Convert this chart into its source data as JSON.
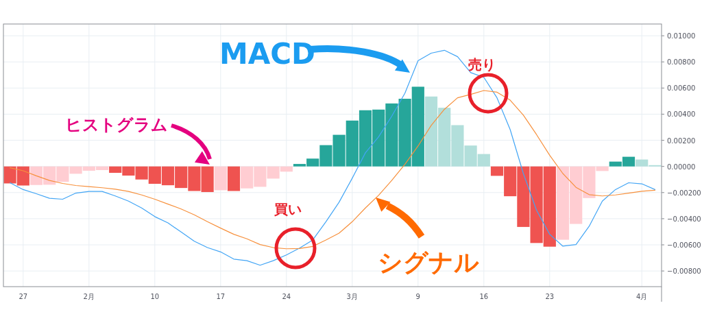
{
  "chart_data": {
    "type": "bar",
    "categories": [
      null,
      "27",
      null,
      null,
      null,
      null,
      "2月",
      null,
      null,
      null,
      null,
      "10",
      null,
      null,
      null,
      null,
      "17",
      null,
      null,
      null,
      null,
      "24",
      null,
      null,
      null,
      null,
      "3月",
      null,
      null,
      null,
      null,
      "9",
      null,
      null,
      null,
      null,
      "16",
      null,
      null,
      null,
      null,
      "23",
      null,
      null,
      null,
      null,
      null,
      null,
      "4月",
      null
    ],
    "series": [
      {
        "name": "ヒストグラム",
        "values": [
          -0.0013,
          -0.00146,
          -0.00142,
          -0.0014,
          -0.00118,
          -0.00056,
          -0.00033,
          -0.00028,
          -0.00049,
          -0.0007,
          -0.001,
          -0.00133,
          -0.00144,
          -0.00165,
          -0.00188,
          -0.00196,
          -0.00182,
          -0.00188,
          -0.00168,
          -0.00156,
          -0.00093,
          -0.0004,
          0.00019,
          0.0006,
          0.00163,
          0.00242,
          0.00351,
          0.0043,
          0.00435,
          0.00482,
          0.00518,
          0.0061,
          0.00535,
          0.00449,
          0.00316,
          0.0016,
          0.00095,
          -0.00072,
          -0.00228,
          -0.00463,
          -0.00586,
          -0.00614,
          -0.00561,
          -0.0044,
          -0.00242,
          -0.00035,
          0.00037,
          0.00074,
          0.00053,
          0.0001
        ],
        "colors": [
          "#ef5350",
          "#ef5350",
          "#ffcdd2",
          "#ffcdd2",
          "#ffcdd2",
          "#ffcdd2",
          "#ffcdd2",
          "#ffcdd2",
          "#ef5350",
          "#ef5350",
          "#ef5350",
          "#ef5350",
          "#ef5350",
          "#ef5350",
          "#ef5350",
          "#ef5350",
          "#ffcdd2",
          "#ef5350",
          "#ffcdd2",
          "#ffcdd2",
          "#ffcdd2",
          "#ffcdd2",
          "#26a69a",
          "#26a69a",
          "#26a69a",
          "#26a69a",
          "#26a69a",
          "#26a69a",
          "#26a69a",
          "#26a69a",
          "#26a69a",
          "#26a69a",
          "#b2dfdb",
          "#b2dfdb",
          "#b2dfdb",
          "#b2dfdb",
          "#b2dfdb",
          "#ef5350",
          "#ef5350",
          "#ef5350",
          "#ef5350",
          "#ef5350",
          "#ffcdd2",
          "#ffcdd2",
          "#ffcdd2",
          "#ffcdd2",
          "#26a69a",
          "#26a69a",
          "#b2dfdb",
          "#b2dfdb"
        ]
      },
      {
        "name": "MACD",
        "type": "line",
        "color": "#42a5f5",
        "values": [
          -0.00125,
          -0.00177,
          -0.00209,
          -0.00244,
          -0.00251,
          -0.00204,
          -0.00191,
          -0.00191,
          -0.00226,
          -0.00265,
          -0.00318,
          -0.00384,
          -0.00432,
          -0.00502,
          -0.00572,
          -0.00621,
          -0.00654,
          -0.00709,
          -0.00721,
          -0.00756,
          -0.00721,
          -0.00677,
          -0.00625,
          -0.00563,
          -0.00423,
          -0.00274,
          -0.0009,
          0.00104,
          0.00226,
          0.00384,
          0.0056,
          0.00809,
          0.00867,
          0.00889,
          0.0084,
          0.00718,
          0.00682,
          0.00525,
          0.00282,
          -0.00054,
          -0.00335,
          -0.00519,
          -0.0061,
          -0.00598,
          -0.00458,
          -0.00265,
          -0.00177,
          -0.00125,
          -0.00133,
          -0.00177
        ]
      },
      {
        "name": "シグナル",
        "type": "line",
        "color": "#f7903c",
        "values": [
          -0.0001,
          -0.00033,
          -0.00072,
          -0.00107,
          -0.0013,
          -0.00146,
          -0.00154,
          -0.00163,
          -0.00174,
          -0.00191,
          -0.00218,
          -0.00251,
          -0.00288,
          -0.00326,
          -0.0037,
          -0.00423,
          -0.00472,
          -0.00519,
          -0.00554,
          -0.00598,
          -0.00621,
          -0.0063,
          -0.00628,
          -0.00612,
          -0.00563,
          -0.00511,
          -0.00423,
          -0.00318,
          -0.00221,
          -0.00107,
          0.00016,
          0.00156,
          0.00314,
          0.00437,
          0.00525,
          0.00551,
          0.00581,
          0.00568,
          0.00507,
          0.00393,
          0.00244,
          0.00086,
          -0.00054,
          -0.0016,
          -0.00216,
          -0.00226,
          -0.00218,
          -0.00204,
          -0.0019,
          -0.00182
        ]
      }
    ],
    "ylim": [
      -0.0092,
      0.0109
    ],
    "yticks": [
      {
        "value": 0.01,
        "label": "0.01000"
      },
      {
        "value": 0.008,
        "label": "0.00800"
      },
      {
        "value": 0.006,
        "label": "0.00600"
      },
      {
        "value": 0.004,
        "label": "0.00400"
      },
      {
        "value": 0.002,
        "label": "0.00200"
      },
      {
        "value": 0,
        "label": "0.00000"
      },
      {
        "value": -0.002,
        "label": "−0.00200"
      },
      {
        "value": -0.004,
        "label": "−0.00400"
      },
      {
        "value": -0.006,
        "label": "−0.00600"
      },
      {
        "value": -0.008,
        "label": "−0.00800"
      }
    ],
    "annotations": [
      "買い",
      "売り"
    ],
    "grid": true
  }
}
